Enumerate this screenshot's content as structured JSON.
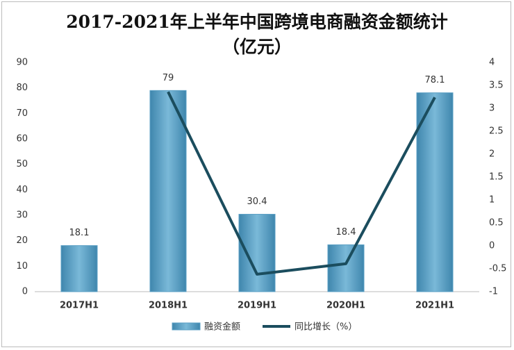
{
  "chart_data": {
    "type": "bar",
    "title": "2017-2021年上半年中国跨境电商融资金额统计（亿元）",
    "categories": [
      "2017H1",
      "2018H1",
      "2019H1",
      "2020H1",
      "2021H1"
    ],
    "series": [
      {
        "name": "融资金额",
        "color": "#5a9fc4",
        "values": [
          18.1,
          79,
          30.4,
          18.4,
          78.1
        ]
      },
      {
        "name": "同比增长（%）",
        "color": "#1b4d5e",
        "type": "line",
        "axis": "y2",
        "values": [
          null,
          3.36,
          -0.62,
          -0.39,
          3.24
        ]
      }
    ],
    "ylim": [
      0,
      90
    ],
    "yticks": [
      0,
      10,
      20,
      30,
      40,
      50,
      60,
      70,
      80,
      90
    ],
    "y2lim": [
      -1,
      4
    ],
    "y2ticks": [
      -1,
      -0.5,
      0,
      0.5,
      1,
      1.5,
      2,
      2.5,
      3,
      3.5,
      4
    ],
    "legend": "bottom"
  }
}
